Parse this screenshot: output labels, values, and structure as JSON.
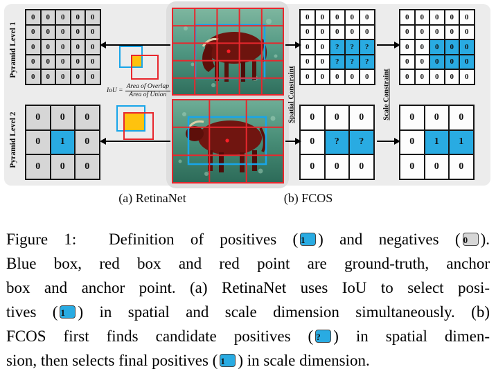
{
  "figure": {
    "labels": {
      "pyramid1": "Pyramid Level 1",
      "pyramid2": "Pyramid Level 2",
      "spatial_constraint": "Spatial Constraint",
      "scale_constraint": "Scale Constraint",
      "subcaption_a": "(a) RetinaNet",
      "subcaption_b": "(b) FCOS"
    },
    "iou": {
      "lhs": "IoU =",
      "numerator": "Area of Overlap",
      "denominator": "Area of Union"
    },
    "colors": {
      "positive_cell": "#29abe2",
      "negative_cell": "#d6d6d6",
      "gt_box": "#18a5e9",
      "anchor_box": "#e8272d",
      "overlap_fill": "#ffc20e"
    },
    "grids": {
      "retina_l1": {
        "cells": [
          [
            "0g",
            "0g",
            "0g",
            "0g",
            "0g"
          ],
          [
            "0g",
            "0g",
            "0g",
            "0g",
            "0g"
          ],
          [
            "0g",
            "0g",
            "0g",
            "0g",
            "0g"
          ],
          [
            "0g",
            "0g",
            "0g",
            "0g",
            "0g"
          ],
          [
            "0g",
            "0g",
            "0g",
            "0g",
            "0g"
          ]
        ]
      },
      "retina_l2": {
        "cells": [
          [
            "0g",
            "0g",
            "0g"
          ],
          [
            "0g",
            "1b",
            "0g"
          ],
          [
            "0g",
            "0g",
            "0g"
          ]
        ]
      },
      "fcos_l1_spatial": {
        "cells": [
          [
            "0w",
            "0w",
            "0w",
            "0w",
            "0w"
          ],
          [
            "0w",
            "0w",
            "0w",
            "0w",
            "0w"
          ],
          [
            "0w",
            "0w",
            "?b",
            "?b",
            "?b"
          ],
          [
            "0w",
            "0w",
            "?b",
            "?b",
            "?b"
          ],
          [
            "0w",
            "0w",
            "0w",
            "0w",
            "0w"
          ]
        ]
      },
      "fcos_l1_scale": {
        "cells": [
          [
            "0w",
            "0w",
            "0w",
            "0w",
            "0w"
          ],
          [
            "0w",
            "0w",
            "0w",
            "0w",
            "0w"
          ],
          [
            "0w",
            "0w",
            "0b",
            "0b",
            "0b"
          ],
          [
            "0w",
            "0w",
            "0b",
            "0b",
            "0b"
          ],
          [
            "0w",
            "0w",
            "0w",
            "0w",
            "0w"
          ]
        ]
      },
      "fcos_l2_spatial": {
        "cells": [
          [
            "0w",
            "0w",
            "0w"
          ],
          [
            "0w",
            "?b",
            "?b"
          ],
          [
            "0w",
            "0w",
            "0w"
          ]
        ]
      },
      "fcos_l2_scale": {
        "cells": [
          [
            "0w",
            "0w",
            "0w"
          ],
          [
            "0w",
            "1b",
            "1b"
          ],
          [
            "0w",
            "0w",
            "0w"
          ]
        ]
      }
    }
  },
  "caption": {
    "lines": [
      [
        "Figure 1:  Definition of positives (",
        {
          "v": "1",
          "c": "blue"
        },
        ") and negatives (",
        {
          "v": "0",
          "c": "gray"
        },
        ")."
      ],
      [
        "Blue box, red box and red point are ground-truth, anchor"
      ],
      [
        "box and anchor point. (a) RetinaNet uses IoU to select posi-"
      ],
      [
        "tives (",
        {
          "v": "1",
          "c": "blue"
        },
        ") in spatial and scale dimension simultaneously. (b)"
      ],
      [
        "FCOS first finds candidate positives (",
        {
          "v": "?",
          "c": "blue"
        },
        ") in spatial dimen-"
      ],
      [
        "sion, then selects final positives (",
        {
          "v": "1",
          "c": "blue"
        },
        ") in scale dimension."
      ]
    ]
  }
}
